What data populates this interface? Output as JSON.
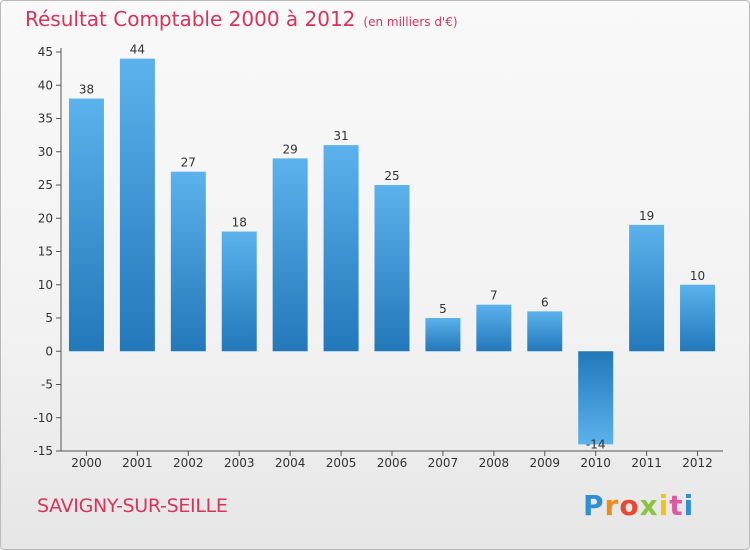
{
  "chart_data": {
    "type": "bar",
    "title": "Résultat Comptable 2000 à 2012",
    "subtitle": "(en milliers d'€)",
    "categories": [
      "2000",
      "2001",
      "2002",
      "2003",
      "2004",
      "2005",
      "2006",
      "2007",
      "2008",
      "2009",
      "2010",
      "2011",
      "2012"
    ],
    "values": [
      38,
      44,
      27,
      18,
      29,
      31,
      25,
      5,
      7,
      6,
      -14,
      19,
      10
    ],
    "ylim": [
      -15,
      45
    ],
    "yticks": [
      45,
      40,
      35,
      30,
      25,
      20,
      15,
      10,
      5,
      0,
      -5,
      -10,
      -15
    ],
    "grid": false,
    "xlabel": "",
    "ylabel": "",
    "colors": {
      "bar_light": "#5cb2ec",
      "bar_dark": "#2278b9",
      "title": "#d8345a"
    }
  },
  "footer": {
    "city": "SAVIGNY-SUR-SEILLE",
    "logo_letters": [
      "P",
      "r",
      "o",
      "x",
      "i",
      "t",
      "i"
    ],
    "logo_colors": [
      "#2e8fd4",
      "#f08a1a",
      "#e8492f",
      "#8bc43f",
      "#f2c21b",
      "#e05aa0",
      "#2e8fd4"
    ]
  }
}
